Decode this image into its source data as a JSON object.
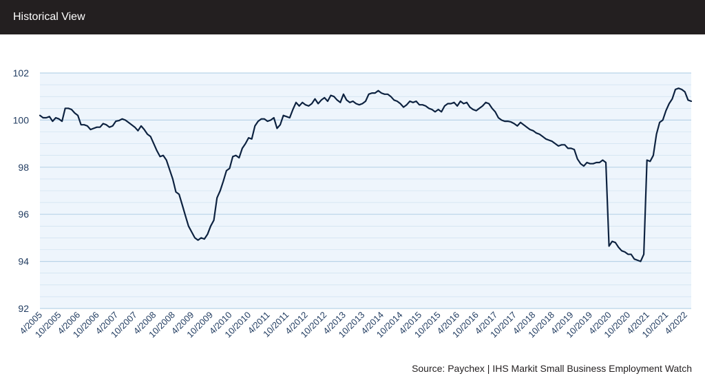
{
  "header": {
    "title": "Historical View"
  },
  "source": "Source: Paychex | IHS Markit Small Business Employment Watch",
  "colors": {
    "header_bg": "#231f20",
    "plot_bg": "#eef5fc",
    "grid": "#b9d3e8",
    "line": "#0d2240",
    "tick_text": "#1f3a5f"
  },
  "chart_data": {
    "type": "line",
    "title": "",
    "xlabel": "",
    "ylabel": "",
    "ylim": [
      92,
      102
    ],
    "yticks": [
      92,
      94,
      96,
      98,
      100,
      102
    ],
    "grid": true,
    "xtick_labels": [
      "4/2005",
      "10/2005",
      "4/2006",
      "10/2006",
      "4/2007",
      "10/2007",
      "4/2008",
      "10/2008",
      "4/2009",
      "10/2009",
      "4/2010",
      "10/2010",
      "4/2011",
      "10/2011",
      "4/2012",
      "10/2012",
      "4/2013",
      "10/2013",
      "4/2014",
      "10/2014",
      "4/2015",
      "10/2015",
      "4/2016",
      "10/2016",
      "4/2017",
      "10/2017",
      "4/2018",
      "10/2018",
      "4/2019",
      "10/2019",
      "4/2020",
      "10/2020",
      "4/2021",
      "10/2021",
      "4/2022"
    ],
    "series": [
      {
        "x_start": "4/2005",
        "x_end": "6/2022",
        "values": [
          100.2,
          100.1,
          100.1,
          100.15,
          99.95,
          100.1,
          100.05,
          99.95,
          100.5,
          100.5,
          100.45,
          100.3,
          100.2,
          99.8,
          99.8,
          99.75,
          99.6,
          99.65,
          99.7,
          99.7,
          99.85,
          99.8,
          99.7,
          99.75,
          99.95,
          99.98,
          100.05,
          100.0,
          99.9,
          99.8,
          99.7,
          99.55,
          99.75,
          99.6,
          99.4,
          99.3,
          99.0,
          98.7,
          98.45,
          98.5,
          98.3,
          97.9,
          97.5,
          96.95,
          96.85,
          96.4,
          95.95,
          95.5,
          95.25,
          95.0,
          94.9,
          95.0,
          94.95,
          95.15,
          95.5,
          95.75,
          96.7,
          97.0,
          97.4,
          97.85,
          97.95,
          98.45,
          98.5,
          98.4,
          98.8,
          99.0,
          99.25,
          99.2,
          99.75,
          99.95,
          100.05,
          100.05,
          99.95,
          100.0,
          100.1,
          99.65,
          99.8,
          100.2,
          100.15,
          100.1,
          100.45,
          100.75,
          100.6,
          100.75,
          100.65,
          100.6,
          100.7,
          100.9,
          100.7,
          100.85,
          100.95,
          100.8,
          101.05,
          101.0,
          100.85,
          100.75,
          101.1,
          100.85,
          100.75,
          100.8,
          100.7,
          100.65,
          100.7,
          100.8,
          101.1,
          101.15,
          101.15,
          101.25,
          101.15,
          101.1,
          101.1,
          101.0,
          100.85,
          100.8,
          100.7,
          100.55,
          100.65,
          100.8,
          100.75,
          100.8,
          100.65,
          100.65,
          100.6,
          100.5,
          100.45,
          100.35,
          100.45,
          100.35,
          100.6,
          100.7,
          100.7,
          100.75,
          100.6,
          100.8,
          100.7,
          100.75,
          100.55,
          100.45,
          100.4,
          100.5,
          100.6,
          100.75,
          100.7,
          100.5,
          100.35,
          100.1,
          100.0,
          99.95,
          99.95,
          99.92,
          99.85,
          99.75,
          99.9,
          99.8,
          99.7,
          99.6,
          99.55,
          99.45,
          99.4,
          99.3,
          99.2,
          99.15,
          99.1,
          99.0,
          98.9,
          98.95,
          98.95,
          98.8,
          98.8,
          98.75,
          98.35,
          98.15,
          98.05,
          98.2,
          98.15,
          98.15,
          98.2,
          98.2,
          98.3,
          98.2,
          94.65,
          94.85,
          94.8,
          94.6,
          94.45,
          94.4,
          94.3,
          94.3,
          94.1,
          94.05,
          94.0,
          94.3,
          98.3,
          98.25,
          98.5,
          99.4,
          99.9,
          100.0,
          100.4,
          100.7,
          100.9,
          101.3,
          101.35,
          101.3,
          101.2,
          100.85,
          100.8
        ]
      }
    ]
  }
}
